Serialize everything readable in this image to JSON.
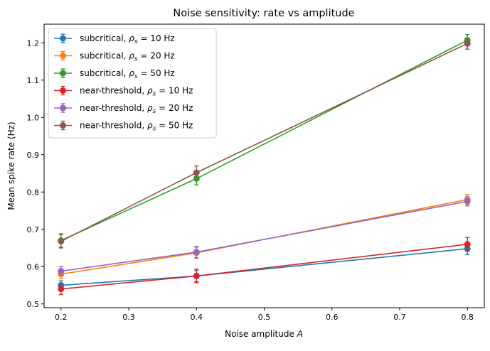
{
  "chart_data": {
    "type": "line",
    "title": "Noise sensitivity: rate vs amplitude",
    "xlabel": "Noise amplitude",
    "xlabel_var": "A",
    "ylabel": "Mean spike rate (Hz)",
    "xlim": [
      0.175,
      0.825
    ],
    "ylim": [
      0.49,
      1.25
    ],
    "xticks": [
      0.2,
      0.3,
      0.4,
      0.5,
      0.6,
      0.7,
      0.8
    ],
    "yticks": [
      0.5,
      0.6,
      0.7,
      0.8,
      0.9,
      1.0,
      1.1,
      1.2
    ],
    "legend_position": "upper-left",
    "x": [
      0.2,
      0.4,
      0.8
    ],
    "series": [
      {
        "name": "subcritical, ρs = 10 Hz",
        "label_prefix": "subcritical, ",
        "rho": "10 Hz",
        "color": "#1f77b4",
        "values": [
          0.55,
          0.575,
          0.648
        ],
        "errors": [
          0.012,
          0.015,
          0.016
        ]
      },
      {
        "name": "subcritical, ρs = 20 Hz",
        "label_prefix": "subcritical, ",
        "rho": "20 Hz",
        "color": "#ff7f0e",
        "values": [
          0.58,
          0.637,
          0.78
        ],
        "errors": [
          0.012,
          0.015,
          0.013
        ]
      },
      {
        "name": "subcritical, ρs = 50 Hz",
        "label_prefix": "subcritical, ",
        "rho": "50 Hz",
        "color": "#2ca02c",
        "values": [
          0.67,
          0.836,
          1.207
        ],
        "errors": [
          0.018,
          0.017,
          0.015
        ]
      },
      {
        "name": "near-threshold, ρs = 10 Hz",
        "label_prefix": "near-threshold, ",
        "rho": "10 Hz",
        "color": "#d62728",
        "values": [
          0.54,
          0.575,
          0.66
        ],
        "errors": [
          0.015,
          0.018,
          0.018
        ]
      },
      {
        "name": "near-threshold, ρs = 20 Hz",
        "label_prefix": "near-threshold, ",
        "rho": "20 Hz",
        "color": "#9467bd",
        "values": [
          0.588,
          0.639,
          0.775
        ],
        "errors": [
          0.012,
          0.015,
          0.012
        ]
      },
      {
        "name": "near-threshold, ρs = 50 Hz",
        "label_prefix": "near-threshold, ",
        "rho": "50 Hz",
        "color": "#8c564b",
        "values": [
          0.668,
          0.852,
          1.198
        ],
        "errors": [
          0.018,
          0.018,
          0.015
        ]
      }
    ]
  }
}
